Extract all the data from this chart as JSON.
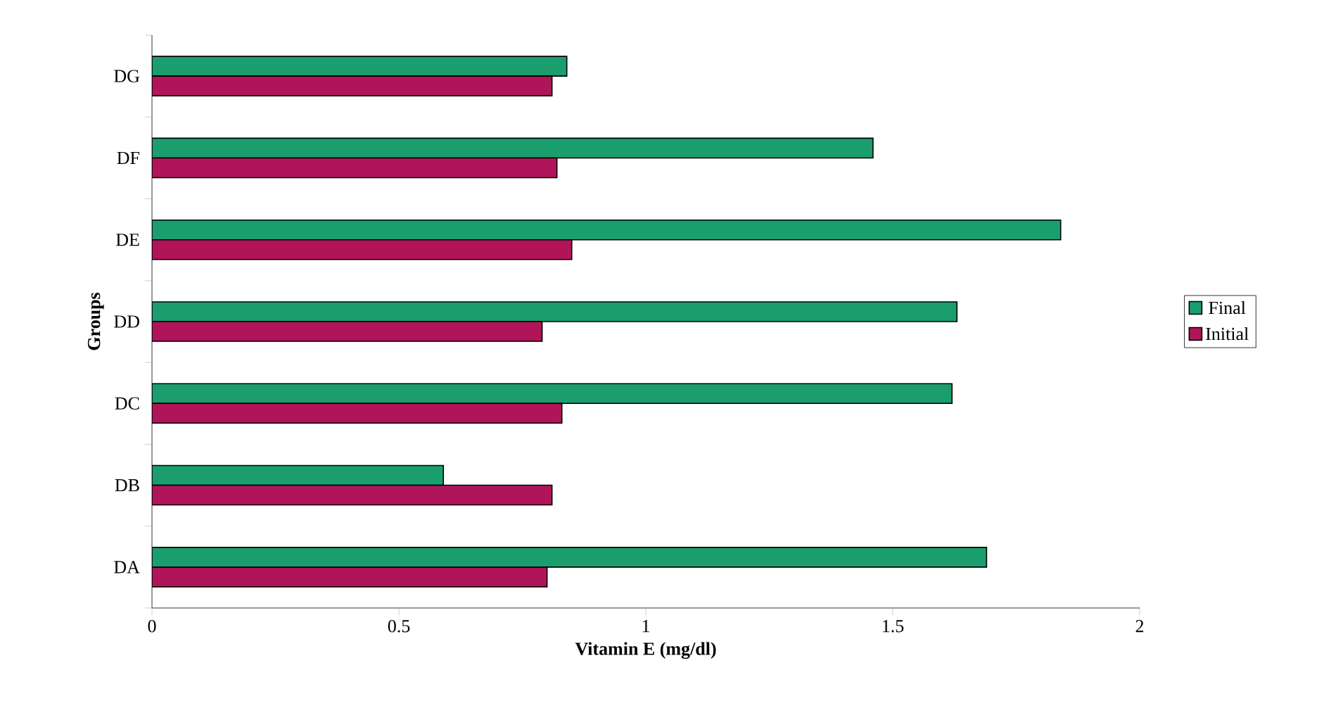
{
  "chart_data": {
    "type": "bar",
    "orientation": "horizontal",
    "xlabel": "Vitamin E (mg/dl)",
    "ylabel": "Groups",
    "categories": [
      "DG",
      "DF",
      "DE",
      "DD",
      "DC",
      "DB",
      "DA"
    ],
    "series": [
      {
        "name": "Final",
        "color": "#1a9e6e",
        "values": [
          0.84,
          1.46,
          1.84,
          1.63,
          1.62,
          0.59,
          1.69
        ]
      },
      {
        "name": "Initial",
        "color": "#b0155a",
        "values": [
          0.81,
          0.82,
          0.85,
          0.79,
          0.83,
          0.81,
          0.8
        ]
      }
    ],
    "xlim": [
      0,
      2
    ],
    "xticks": [
      0,
      0.5,
      1,
      1.5,
      2
    ],
    "legend": "right",
    "grid": false
  }
}
